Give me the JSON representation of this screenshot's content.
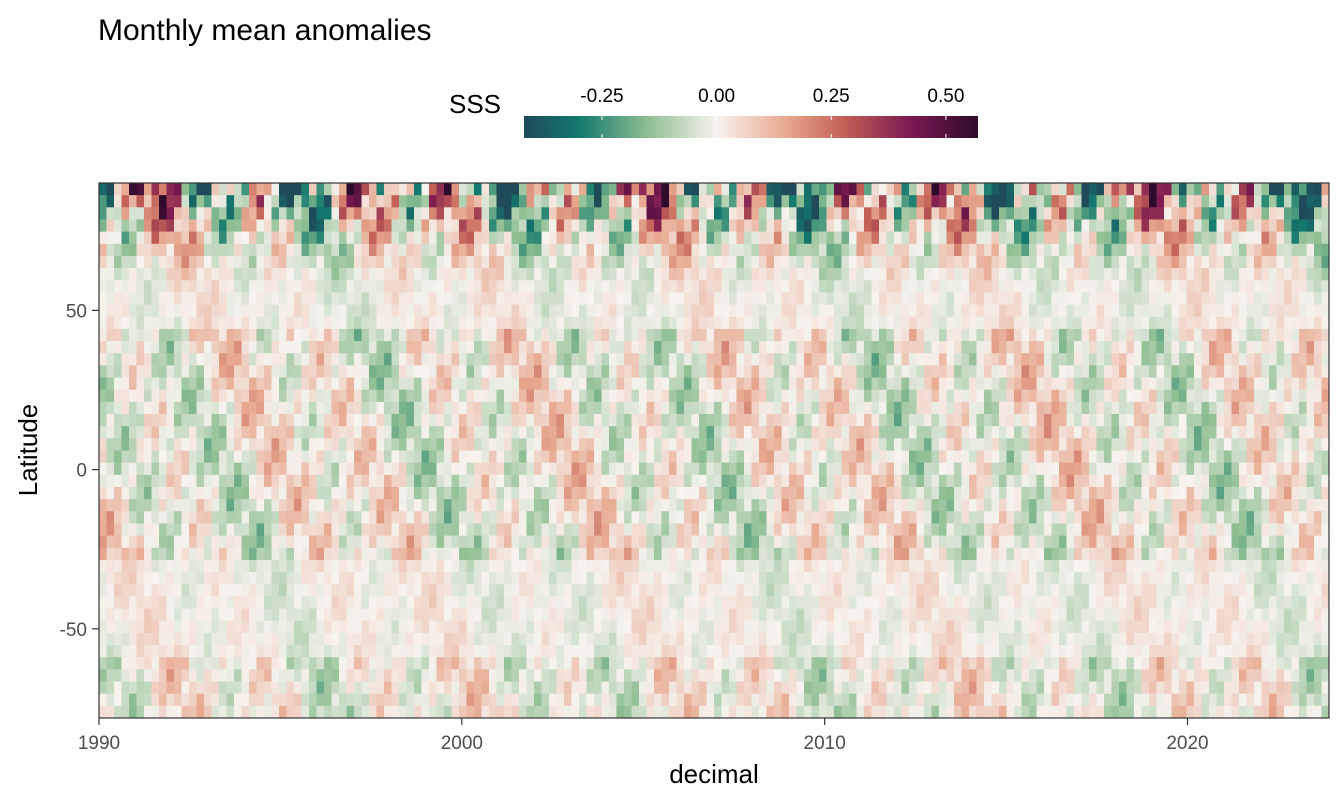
{
  "chart_data": {
    "type": "heatmap",
    "title": "Monthly mean anomalies",
    "xlabel": "decimal",
    "ylabel": "Latitude",
    "xlim": [
      1990,
      2023.9
    ],
    "ylim": [
      -78,
      90
    ],
    "x_ticks": [
      {
        "value": 1990,
        "label": "1990"
      },
      {
        "value": 2000,
        "label": "2000"
      },
      {
        "value": 2010,
        "label": "2010"
      },
      {
        "value": 2020,
        "label": "2020"
      }
    ],
    "y_ticks": [
      {
        "value": 50,
        "label": "50"
      },
      {
        "value": 0,
        "label": "0"
      },
      {
        "value": -50,
        "label": "-50"
      }
    ],
    "legend": {
      "title": "SSS",
      "position": "top",
      "range": [
        -0.42,
        0.57
      ],
      "ticks": [
        {
          "value": -0.25,
          "label": "-0.25"
        },
        {
          "value": 0.0,
          "label": "0.00"
        },
        {
          "value": 0.25,
          "label": "0.25"
        },
        {
          "value": 0.5,
          "label": "0.50"
        }
      ],
      "color_stops": [
        {
          "value": -0.42,
          "color": "#1f4a5a"
        },
        {
          "value": -0.3,
          "color": "#137a6e"
        },
        {
          "value": -0.15,
          "color": "#8fbf92"
        },
        {
          "value": 0.0,
          "color": "#f7f3ef"
        },
        {
          "value": 0.15,
          "color": "#e8a990"
        },
        {
          "value": 0.28,
          "color": "#c25f55"
        },
        {
          "value": 0.42,
          "color": "#7c1a52"
        },
        {
          "value": 0.57,
          "color": "#2e0a2c"
        }
      ]
    },
    "panel_border": true,
    "grid": false
  }
}
